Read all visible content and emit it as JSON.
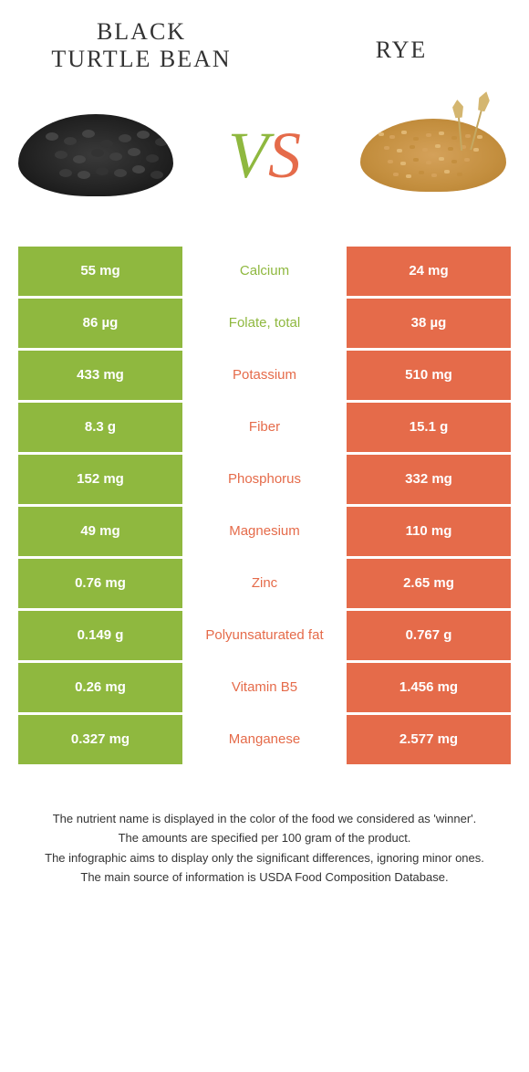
{
  "header": {
    "left_title": "BLACK\nTURTLE BEAN",
    "right_title": "RYE",
    "vs_v": "V",
    "vs_s": "S"
  },
  "colors": {
    "left": "#8fb83f",
    "right": "#e56b4a",
    "left_label": "#8fb83f",
    "right_label": "#e56b4a",
    "cell_text": "#ffffff",
    "background": "#ffffff"
  },
  "table": {
    "rows": [
      {
        "left": "55 mg",
        "label": "Calcium",
        "right": "24 mg",
        "winner": "left"
      },
      {
        "left": "86 µg",
        "label": "Folate, total",
        "right": "38 µg",
        "winner": "left"
      },
      {
        "left": "433 mg",
        "label": "Potassium",
        "right": "510 mg",
        "winner": "right"
      },
      {
        "left": "8.3 g",
        "label": "Fiber",
        "right": "15.1 g",
        "winner": "right"
      },
      {
        "left": "152 mg",
        "label": "Phosphorus",
        "right": "332 mg",
        "winner": "right"
      },
      {
        "left": "49 mg",
        "label": "Magnesium",
        "right": "110 mg",
        "winner": "right"
      },
      {
        "left": "0.76 mg",
        "label": "Zinc",
        "right": "2.65 mg",
        "winner": "right"
      },
      {
        "left": "0.149 g",
        "label": "Polyunsaturated fat",
        "right": "0.767 g",
        "winner": "right"
      },
      {
        "left": "0.26 mg",
        "label": "Vitamin B5",
        "right": "1.456 mg",
        "winner": "right"
      },
      {
        "left": "0.327 mg",
        "label": "Manganese",
        "right": "2.577 mg",
        "winner": "right"
      }
    ]
  },
  "footer": {
    "lines": [
      "The nutrient name is displayed in the color of the food we considered as 'winner'.",
      "The amounts are specified per 100 gram of the product.",
      "The infographic aims to display only the significant differences, ignoring minor ones.",
      "The main source of information is USDA Food Composition Database."
    ]
  }
}
